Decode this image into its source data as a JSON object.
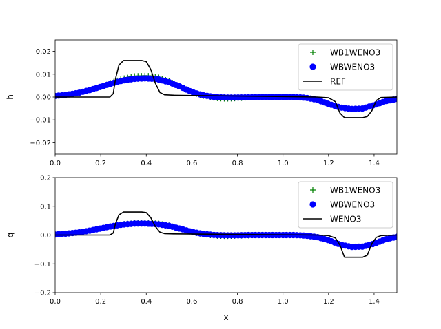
{
  "chart_data": [
    {
      "type": "line",
      "ylabel": "h",
      "xlim": [
        0,
        1.5
      ],
      "ylim": [
        -0.025,
        0.025
      ],
      "xticks": [
        "0.0",
        "0.2",
        "0.4",
        "0.6",
        "0.8",
        "1.0",
        "1.2",
        "1.4"
      ],
      "yticks": [
        "0.02",
        "0.01",
        "0.00",
        "−0.01",
        "−0.02"
      ],
      "legend_position": "top-right",
      "series": [
        {
          "name": "WB1WENO3",
          "marker": "plus",
          "color": "#008000",
          "x": [
            0.0,
            0.05,
            0.1,
            0.15,
            0.2,
            0.25,
            0.3,
            0.35,
            0.4,
            0.45,
            0.5,
            0.55,
            0.6,
            0.65,
            0.7,
            0.75,
            0.8,
            0.85,
            0.9,
            0.95,
            1.0,
            1.05,
            1.1,
            1.15,
            1.2,
            1.25,
            1.3,
            1.35,
            1.4,
            1.45,
            1.5
          ],
          "y": [
            0.0005,
            0.001,
            0.0018,
            0.003,
            0.0045,
            0.0065,
            0.0082,
            0.0092,
            0.0094,
            0.0088,
            0.007,
            0.0045,
            0.002,
            0.0005,
            -0.0005,
            -0.0008,
            -0.0006,
            -0.0003,
            0.0,
            0.0,
            0.0,
            0.0,
            -0.0003,
            -0.0012,
            -0.003,
            -0.0045,
            -0.0052,
            -0.005,
            -0.0035,
            -0.0018,
            -0.0008
          ]
        },
        {
          "name": "WBWENO3",
          "marker": "circle",
          "color": "#0000ff",
          "x": [
            0.0,
            0.05,
            0.1,
            0.15,
            0.2,
            0.25,
            0.3,
            0.35,
            0.4,
            0.45,
            0.5,
            0.55,
            0.6,
            0.65,
            0.7,
            0.75,
            0.8,
            0.85,
            0.9,
            0.95,
            1.0,
            1.05,
            1.1,
            1.15,
            1.2,
            1.25,
            1.3,
            1.35,
            1.4,
            1.45,
            1.5
          ],
          "y": [
            0.0005,
            0.001,
            0.0018,
            0.003,
            0.0045,
            0.006,
            0.0073,
            0.008,
            0.0082,
            0.0078,
            0.0065,
            0.0045,
            0.0022,
            0.0008,
            0.0,
            -0.0002,
            -0.0002,
            -0.0001,
            0.0,
            0.0,
            0.0,
            0.0,
            -0.0003,
            -0.0012,
            -0.003,
            -0.0045,
            -0.0052,
            -0.005,
            -0.0035,
            -0.0018,
            -0.0008
          ]
        },
        {
          "name": "REF",
          "marker": "line",
          "color": "#000000",
          "x": [
            0.0,
            0.24,
            0.255,
            0.265,
            0.28,
            0.3,
            0.38,
            0.4,
            0.42,
            0.44,
            0.46,
            0.48,
            0.52,
            1.15,
            1.2,
            1.23,
            1.25,
            1.27,
            1.35,
            1.37,
            1.39,
            1.41,
            1.43,
            1.5
          ],
          "y": [
            0.0,
            0.0,
            0.0015,
            0.008,
            0.014,
            0.016,
            0.016,
            0.0155,
            0.012,
            0.006,
            0.002,
            0.001,
            0.0008,
            0.0,
            -0.0003,
            -0.002,
            -0.007,
            -0.009,
            -0.009,
            -0.0085,
            -0.006,
            -0.0015,
            -0.0002,
            0.0
          ]
        }
      ]
    },
    {
      "type": "line",
      "xlabel": "x",
      "ylabel": "q",
      "xlim": [
        0,
        1.5
      ],
      "ylim": [
        -0.2,
        0.2
      ],
      "xticks": [
        "0.0",
        "0.2",
        "0.4",
        "0.6",
        "0.8",
        "1.0",
        "1.2",
        "1.4"
      ],
      "yticks": [
        "0.2",
        "0.1",
        "0.0",
        "−0.1",
        "−0.2"
      ],
      "legend_position": "top-right",
      "series": [
        {
          "name": "WB1WENO3",
          "marker": "plus",
          "color": "#008000",
          "x": [
            0.0,
            0.05,
            0.1,
            0.15,
            0.2,
            0.25,
            0.3,
            0.35,
            0.4,
            0.45,
            0.5,
            0.55,
            0.6,
            0.65,
            0.7,
            0.75,
            0.8,
            0.85,
            0.9,
            0.95,
            1.0,
            1.05,
            1.1,
            1.15,
            1.2,
            1.25,
            1.3,
            1.35,
            1.4,
            1.45,
            1.5
          ],
          "y": [
            0.002,
            0.005,
            0.009,
            0.015,
            0.023,
            0.032,
            0.039,
            0.042,
            0.043,
            0.041,
            0.034,
            0.022,
            0.01,
            0.002,
            -0.003,
            -0.004,
            -0.003,
            -0.002,
            0.0,
            0.0,
            0.0,
            0.0,
            -0.002,
            -0.007,
            -0.018,
            -0.033,
            -0.041,
            -0.04,
            -0.03,
            -0.015,
            -0.006
          ]
        },
        {
          "name": "WBWENO3",
          "marker": "circle",
          "color": "#0000ff",
          "x": [
            0.0,
            0.05,
            0.1,
            0.15,
            0.2,
            0.25,
            0.3,
            0.35,
            0.4,
            0.45,
            0.5,
            0.55,
            0.6,
            0.65,
            0.7,
            0.75,
            0.8,
            0.85,
            0.9,
            0.95,
            1.0,
            1.05,
            1.1,
            1.15,
            1.2,
            1.25,
            1.3,
            1.35,
            1.4,
            1.45,
            1.5
          ],
          "y": [
            0.002,
            0.005,
            0.009,
            0.015,
            0.023,
            0.031,
            0.037,
            0.04,
            0.04,
            0.038,
            0.032,
            0.022,
            0.011,
            0.004,
            0.0,
            -0.001,
            -0.001,
            0.0,
            0.0,
            0.0,
            0.0,
            0.0,
            -0.002,
            -0.007,
            -0.018,
            -0.033,
            -0.041,
            -0.04,
            -0.03,
            -0.015,
            -0.006
          ]
        },
        {
          "name": "WENO3",
          "marker": "line",
          "color": "#000000",
          "x": [
            0.0,
            0.24,
            0.255,
            0.265,
            0.28,
            0.3,
            0.38,
            0.4,
            0.42,
            0.44,
            0.46,
            0.48,
            0.52,
            1.15,
            1.2,
            1.23,
            1.25,
            1.27,
            1.35,
            1.37,
            1.39,
            1.41,
            1.43,
            1.5
          ],
          "y": [
            0.0,
            0.0,
            0.007,
            0.04,
            0.07,
            0.08,
            0.08,
            0.078,
            0.06,
            0.03,
            0.01,
            0.005,
            0.004,
            0.0,
            -0.002,
            -0.01,
            -0.035,
            -0.077,
            -0.077,
            -0.07,
            -0.03,
            -0.008,
            -0.002,
            0.0
          ]
        }
      ]
    }
  ]
}
